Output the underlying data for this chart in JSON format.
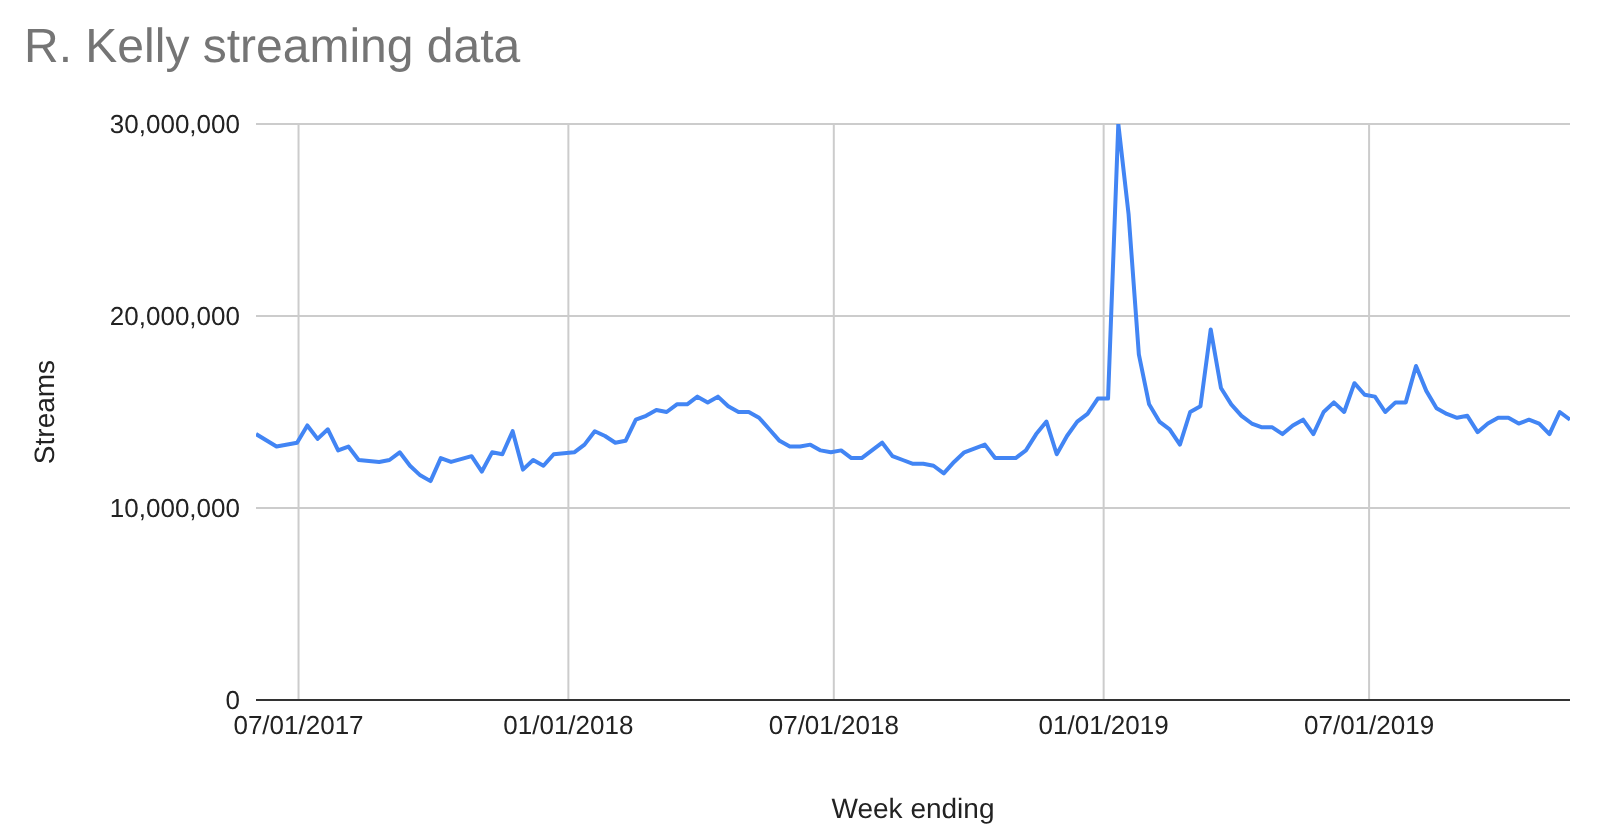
{
  "chart_data": {
    "type": "line",
    "title": "R. Kelly streaming data",
    "xlabel": "Week ending",
    "ylabel": "Streams",
    "x": [
      "2017-06-02",
      "2017-06-16",
      "2017-06-30",
      "2017-07-07",
      "2017-07-14",
      "2017-07-21",
      "2017-07-28",
      "2017-08-04",
      "2017-08-11",
      "2017-08-25",
      "2017-09-01",
      "2017-09-08",
      "2017-09-15",
      "2017-09-22",
      "2017-09-29",
      "2017-10-06",
      "2017-10-13",
      "2017-10-27",
      "2017-11-03",
      "2017-11-10",
      "2017-11-17",
      "2017-11-24",
      "2017-12-01",
      "2017-12-08",
      "2017-12-15",
      "2017-12-22",
      "2018-01-05",
      "2018-01-12",
      "2018-01-19",
      "2018-01-26",
      "2018-02-02",
      "2018-02-09",
      "2018-02-16",
      "2018-02-23",
      "2018-03-02",
      "2018-03-09",
      "2018-03-16",
      "2018-03-23",
      "2018-03-30",
      "2018-04-06",
      "2018-04-13",
      "2018-04-20",
      "2018-04-27",
      "2018-05-04",
      "2018-05-11",
      "2018-05-18",
      "2018-05-25",
      "2018-06-01",
      "2018-06-08",
      "2018-06-15",
      "2018-06-22",
      "2018-06-29",
      "2018-07-06",
      "2018-07-13",
      "2018-07-20",
      "2018-08-03",
      "2018-08-10",
      "2018-08-17",
      "2018-08-24",
      "2018-08-31",
      "2018-09-07",
      "2018-09-14",
      "2018-09-21",
      "2018-09-28",
      "2018-10-12",
      "2018-10-19",
      "2018-11-02",
      "2018-11-09",
      "2018-11-16",
      "2018-11-23",
      "2018-11-30",
      "2018-12-07",
      "2018-12-14",
      "2018-12-21",
      "2018-12-28",
      "2019-01-04",
      "2019-01-11",
      "2019-01-18",
      "2019-01-25",
      "2019-02-01",
      "2019-02-08",
      "2019-02-15",
      "2019-02-22",
      "2019-03-01",
      "2019-03-08",
      "2019-03-15",
      "2019-03-22",
      "2019-03-29",
      "2019-04-05",
      "2019-04-12",
      "2019-04-19",
      "2019-04-26",
      "2019-05-03",
      "2019-05-10",
      "2019-05-17",
      "2019-05-24",
      "2019-05-31",
      "2019-06-07",
      "2019-06-14",
      "2019-06-21",
      "2019-06-28",
      "2019-07-05",
      "2019-07-12",
      "2019-07-19",
      "2019-07-26",
      "2019-08-02",
      "2019-08-09",
      "2019-08-16",
      "2019-08-23",
      "2019-08-30",
      "2019-09-06",
      "2019-09-13",
      "2019-09-20",
      "2019-09-27",
      "2019-10-04",
      "2019-10-11",
      "2019-10-18",
      "2019-10-25",
      "2019-11-01",
      "2019-11-08",
      "2019-11-15"
    ],
    "series": [
      {
        "color": "#4285f4",
        "values": [
          13850000,
          13200000,
          13400000,
          14300000,
          13600000,
          14100000,
          13000000,
          13200000,
          12500000,
          12400000,
          12500000,
          12900000,
          12200000,
          11700000,
          11400000,
          12600000,
          12400000,
          12700000,
          11900000,
          12900000,
          12800000,
          14000000,
          12000000,
          12500000,
          12200000,
          12800000,
          12900000,
          13300000,
          14000000,
          13750000,
          13400000,
          13500000,
          14600000,
          14800000,
          15100000,
          15000000,
          15400000,
          15400000,
          15800000,
          15500000,
          15800000,
          15300000,
          15000000,
          15000000,
          14700000,
          14100000,
          13500000,
          13200000,
          13200000,
          13300000,
          13000000,
          12900000,
          13000000,
          12600000,
          12600000,
          13400000,
          12700000,
          12500000,
          12300000,
          12300000,
          12200000,
          11800000,
          12400000,
          12900000,
          13300000,
          12600000,
          12600000,
          13000000,
          13850000,
          14500000,
          12800000,
          13750000,
          14500000,
          14900000,
          15700000,
          15700000,
          30000000,
          25300000,
          18000000,
          15400000,
          14500000,
          14100000,
          13300000,
          15000000,
          15300000,
          19300000,
          16250000,
          15400000,
          14800000,
          14400000,
          14200000,
          14200000,
          13850000,
          14300000,
          14600000,
          13850000,
          15000000,
          15500000,
          15000000,
          16500000,
          15900000,
          15800000,
          15000000,
          15500000,
          15500000,
          17400000,
          16100000,
          15200000,
          14900000,
          14700000,
          14800000,
          13950000,
          14400000,
          14700000,
          14700000,
          14400000,
          14600000,
          14400000,
          13850000,
          15000000,
          14600000
        ]
      }
    ],
    "xlim": [
      "2017-06-02",
      "2019-11-15"
    ],
    "xticks": [
      {
        "value": "2017-07-01",
        "label": "07/01/2017"
      },
      {
        "value": "2018-01-01",
        "label": "01/01/2018"
      },
      {
        "value": "2018-07-01",
        "label": "07/01/2018"
      },
      {
        "value": "2019-01-01",
        "label": "01/01/2019"
      },
      {
        "value": "2019-07-01",
        "label": "07/01/2019"
      }
    ],
    "ylim": [
      0,
      30000000
    ],
    "yticks": [
      0,
      {
        "value": 10000000,
        "label": "10,000,000"
      },
      {
        "value": 20000000,
        "label": "20,000,000"
      },
      {
        "value": 30000000,
        "label": "30,000,000"
      }
    ],
    "grid": true,
    "legend": false,
    "marker": "none",
    "line_style": "solid"
  }
}
